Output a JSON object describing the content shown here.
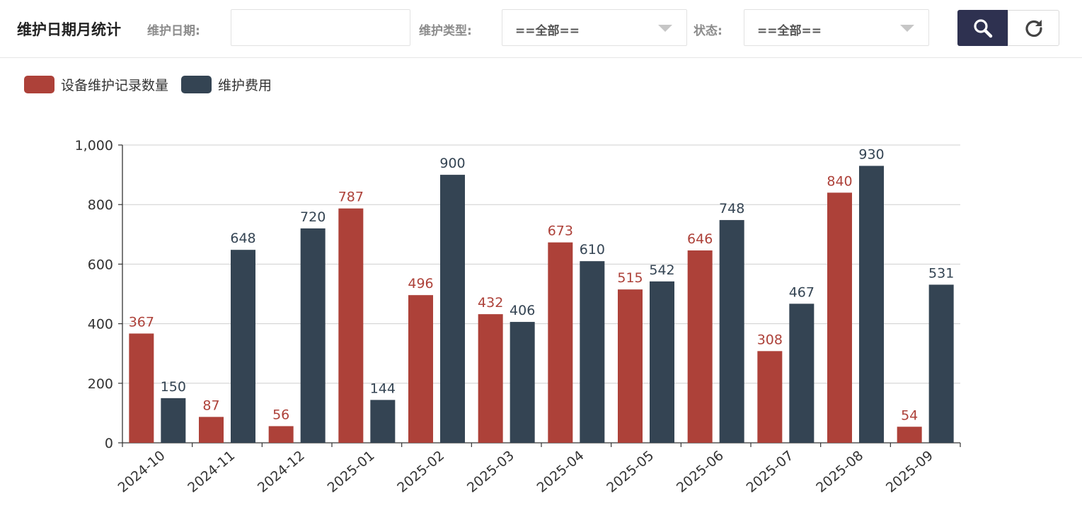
{
  "header": {
    "title": "维护日期月统计",
    "filters": {
      "date_label": "维护日期:",
      "date_value": "",
      "type_label": "维护类型:",
      "type_value": "==全部==",
      "status_label": "状态:",
      "status_value": "==全部=="
    },
    "buttons": {
      "search_icon": "search-icon",
      "reset_icon": "refresh-icon"
    }
  },
  "colors": {
    "series_1": "#ad4139",
    "series_2": "#344453",
    "button_dark": "#2e3150"
  },
  "chart_data": {
    "type": "bar",
    "categories": [
      "2024-10",
      "2024-11",
      "2024-12",
      "2025-01",
      "2025-02",
      "2025-03",
      "2025-04",
      "2025-05",
      "2025-06",
      "2025-07",
      "2025-08",
      "2025-09"
    ],
    "series": [
      {
        "name": "设备维护记录数量",
        "color": "#ad4139",
        "values": [
          367,
          87,
          56,
          787,
          496,
          432,
          673,
          515,
          646,
          308,
          840,
          54
        ]
      },
      {
        "name": "维护费用",
        "color": "#344453",
        "values": [
          150,
          648,
          720,
          144,
          900,
          406,
          610,
          542,
          748,
          467,
          930,
          531
        ]
      }
    ],
    "ylim": [
      0,
      1000
    ],
    "yticks": [
      0,
      200,
      400,
      600,
      800,
      1000
    ],
    "ytick_labels": [
      "0",
      "200",
      "400",
      "600",
      "800",
      "1,000"
    ],
    "grid": true,
    "legend": "top-left",
    "data_labels": true
  }
}
